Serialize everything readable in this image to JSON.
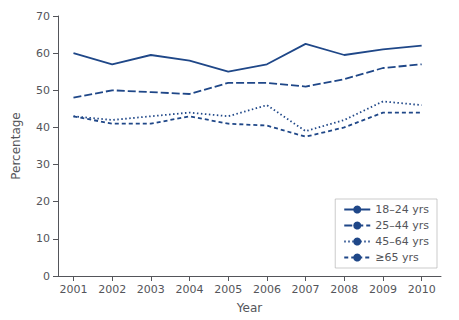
{
  "chart_data": {
    "type": "line",
    "xlabel": "Year",
    "ylabel": "Percentage",
    "x": [
      2001,
      2002,
      2003,
      2004,
      2005,
      2006,
      2007,
      2008,
      2009,
      2010
    ],
    "series": [
      {
        "name": "18–24 yrs",
        "color": "#1f4788",
        "line_style": "solid",
        "values": [
          60,
          57,
          59.5,
          58,
          55,
          57,
          62.5,
          59.5,
          61,
          62
        ]
      },
      {
        "name": "25–44 yrs",
        "color": "#1f4788",
        "line_style": "longdash",
        "values": [
          48,
          50,
          49.5,
          49,
          52,
          52,
          51,
          53,
          56,
          57
        ]
      },
      {
        "name": "45–64 yrs",
        "color": "#1f4788",
        "line_style": "dotted",
        "values": [
          43,
          42,
          43,
          44,
          43,
          46,
          39,
          42,
          47,
          46
        ]
      },
      {
        "name": "≥65 yrs",
        "color": "#1f4788",
        "line_style": "dashed",
        "values": [
          43,
          41,
          41,
          43,
          41,
          40.5,
          37.5,
          40,
          44,
          44
        ]
      }
    ],
    "xlim": [
      2000.6,
      2010.5
    ],
    "xticks": [
      2001,
      2002,
      2003,
      2004,
      2005,
      2006,
      2007,
      2008,
      2009,
      2010
    ],
    "ylim": [
      0,
      70
    ],
    "yticks": [
      0,
      10,
      20,
      30,
      40,
      50,
      60,
      70
    ],
    "grid": false,
    "legend": "lower right"
  }
}
